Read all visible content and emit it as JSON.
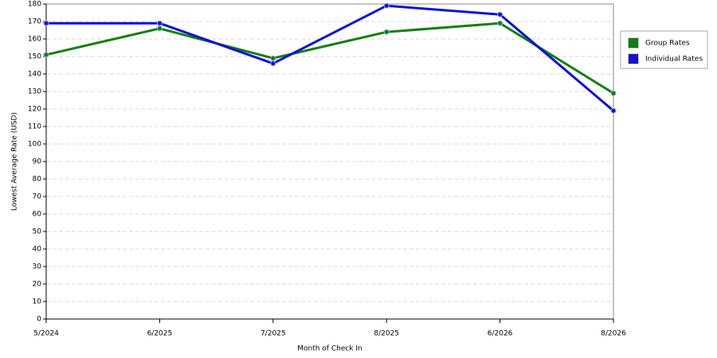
{
  "chart_data": {
    "type": "line",
    "x_label": "Month of Check In",
    "y_label": "Lowest Average Rate (USD)",
    "categories": [
      "5/2024",
      "6/2025",
      "7/2025",
      "8/2025",
      "6/2026",
      "8/2026"
    ],
    "series": [
      {
        "name": "Group Rates",
        "color": "#118011",
        "values": [
          151,
          166,
          149,
          164,
          169,
          129
        ]
      },
      {
        "name": "Individual Rates",
        "color": "#1010d8",
        "values": [
          169,
          169,
          146,
          179,
          174,
          119
        ]
      }
    ],
    "ylim": [
      0,
      180
    ],
    "yticks": [
      0,
      10,
      20,
      30,
      40,
      50,
      60,
      70,
      80,
      90,
      100,
      110,
      120,
      130,
      140,
      150,
      160,
      170,
      180
    ],
    "grid": true
  }
}
